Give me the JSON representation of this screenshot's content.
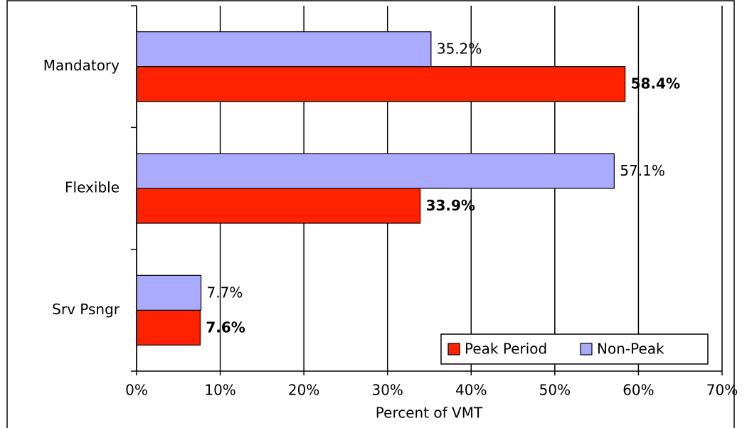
{
  "chart_data": {
    "type": "bar",
    "orientation": "horizontal",
    "categories": [
      "Mandatory",
      "Flexible",
      "Srv Psngr"
    ],
    "series": [
      {
        "name": "Peak Period",
        "color": "#ff2200",
        "values": [
          58.4,
          33.9,
          7.6
        ],
        "value_labels": [
          "58.4%",
          "33.9%",
          "7.6%"
        ]
      },
      {
        "name": "Non-Peak",
        "color": "#aaaaff",
        "values": [
          35.2,
          57.1,
          7.7
        ],
        "value_labels": [
          "35.2%",
          "57.1%",
          "7.7%"
        ]
      }
    ],
    "xlim": [
      0,
      70
    ],
    "xticks": [
      {
        "value": 0,
        "label": "0%"
      },
      {
        "value": 10,
        "label": "10%"
      },
      {
        "value": 20,
        "label": "20%"
      },
      {
        "value": 30,
        "label": "30%"
      },
      {
        "value": 40,
        "label": "40%"
      },
      {
        "value": 50,
        "label": "50%"
      },
      {
        "value": 60,
        "label": "60%"
      },
      {
        "value": 70,
        "label": "70%"
      }
    ],
    "xlabel": "Percent of VMT",
    "grid": true,
    "legend": "lower right"
  }
}
